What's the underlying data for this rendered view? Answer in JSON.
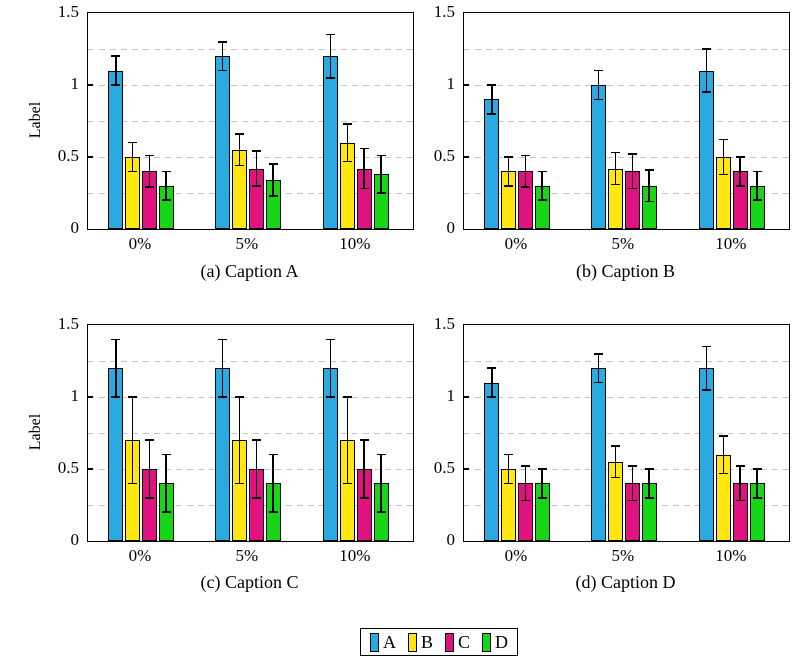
{
  "colors": {
    "A": "#29abe2",
    "B": "#ffe70f",
    "C": "#e0127f",
    "D": "#16d616",
    "grid": "#c3c3c3",
    "frame": "#000000",
    "error_bar": "#000000"
  },
  "legend": {
    "entries": [
      {
        "label": "A",
        "color": "#29abe2"
      },
      {
        "label": "B",
        "color": "#ffe70f"
      },
      {
        "label": "C",
        "color": "#e0127f"
      },
      {
        "label": "D",
        "color": "#16d616"
      }
    ]
  },
  "chart_data": [
    {
      "type": "bar",
      "caption": "(a) Caption A",
      "ylabel": "Label",
      "ylim": [
        0,
        1.5
      ],
      "yticks": [
        0,
        0.5,
        1,
        1.5
      ],
      "ytick_labels": [
        "0",
        "0.5",
        "1",
        "1.5"
      ],
      "gridlines": [
        0.25,
        0.5,
        0.75,
        1.0,
        1.25
      ],
      "grid": "dashed",
      "categories": [
        "0%",
        "5%",
        "10%"
      ],
      "series": [
        {
          "name": "A",
          "values": [
            1.1,
            1.2,
            1.2
          ],
          "errors": [
            0.1,
            0.1,
            0.15
          ]
        },
        {
          "name": "B",
          "values": [
            0.5,
            0.55,
            0.6
          ],
          "errors": [
            0.1,
            0.11,
            0.13
          ]
        },
        {
          "name": "C",
          "values": [
            0.4,
            0.42,
            0.42
          ],
          "errors": [
            0.11,
            0.12,
            0.14
          ]
        },
        {
          "name": "D",
          "values": [
            0.3,
            0.34,
            0.38
          ],
          "errors": [
            0.1,
            0.11,
            0.13
          ]
        }
      ]
    },
    {
      "type": "bar",
      "caption": "(b) Caption B",
      "ylabel": "",
      "ylim": [
        0,
        1.5
      ],
      "yticks": [
        0,
        0.5,
        1,
        1.5
      ],
      "ytick_labels": [
        "0",
        "0.5",
        "1",
        "1.5"
      ],
      "gridlines": [
        0.25,
        0.5,
        0.75,
        1.0,
        1.25
      ],
      "grid": "dashed",
      "categories": [
        "0%",
        "5%",
        "10%"
      ],
      "series": [
        {
          "name": "A",
          "values": [
            0.9,
            1.0,
            1.1
          ],
          "errors": [
            0.1,
            0.1,
            0.15
          ]
        },
        {
          "name": "B",
          "values": [
            0.4,
            0.42,
            0.5
          ],
          "errors": [
            0.1,
            0.11,
            0.12
          ]
        },
        {
          "name": "C",
          "values": [
            0.4,
            0.4,
            0.4
          ],
          "errors": [
            0.11,
            0.12,
            0.1
          ]
        },
        {
          "name": "D",
          "values": [
            0.3,
            0.3,
            0.3
          ],
          "errors": [
            0.1,
            0.11,
            0.1
          ]
        }
      ]
    },
    {
      "type": "bar",
      "caption": "(c) Caption C",
      "ylabel": "Label",
      "ylim": [
        0,
        1.5
      ],
      "yticks": [
        0,
        0.5,
        1,
        1.5
      ],
      "ytick_labels": [
        "0",
        "0.5",
        "1",
        "1.5"
      ],
      "gridlines": [
        0.25,
        0.5,
        0.75,
        1.0,
        1.25
      ],
      "grid": "dashed",
      "categories": [
        "0%",
        "5%",
        "10%"
      ],
      "series": [
        {
          "name": "A",
          "values": [
            1.2,
            1.2,
            1.2
          ],
          "errors": [
            0.2,
            0.2,
            0.2
          ]
        },
        {
          "name": "B",
          "values": [
            0.7,
            0.7,
            0.7
          ],
          "errors": [
            0.3,
            0.3,
            0.3
          ]
        },
        {
          "name": "C",
          "values": [
            0.5,
            0.5,
            0.5
          ],
          "errors": [
            0.2,
            0.2,
            0.2
          ]
        },
        {
          "name": "D",
          "values": [
            0.4,
            0.4,
            0.4
          ],
          "errors": [
            0.2,
            0.2,
            0.2
          ]
        }
      ]
    },
    {
      "type": "bar",
      "caption": "(d) Caption D",
      "ylabel": "",
      "ylim": [
        0,
        1.5
      ],
      "yticks": [
        0,
        0.5,
        1,
        1.5
      ],
      "ytick_labels": [
        "0",
        "0.5",
        "1",
        "1.5"
      ],
      "gridlines": [
        0.25,
        0.5,
        0.75,
        1.0,
        1.25
      ],
      "grid": "dashed",
      "categories": [
        "0%",
        "5%",
        "10%"
      ],
      "series": [
        {
          "name": "A",
          "values": [
            1.1,
            1.2,
            1.2
          ],
          "errors": [
            0.1,
            0.1,
            0.15
          ]
        },
        {
          "name": "B",
          "values": [
            0.5,
            0.55,
            0.6
          ],
          "errors": [
            0.1,
            0.11,
            0.13
          ]
        },
        {
          "name": "C",
          "values": [
            0.4,
            0.4,
            0.4
          ],
          "errors": [
            0.12,
            0.12,
            0.12
          ]
        },
        {
          "name": "D",
          "values": [
            0.4,
            0.4,
            0.4
          ],
          "errors": [
            0.1,
            0.1,
            0.1
          ]
        }
      ]
    }
  ]
}
